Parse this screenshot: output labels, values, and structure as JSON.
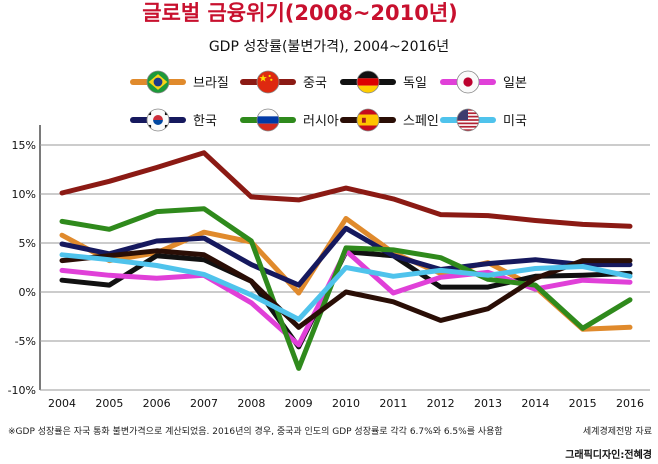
{
  "title": "글로벌 금융위기(2008~2010년)",
  "subtitle": "GDP 성장률(불변가격), 2004~2016년",
  "footnote": "※GDP 성장률은 자국 통화 불변가격으로 계산되었음. 2016년의 경우, 중국과 인도의 GDP 성장률로 각각 6.7%와 6.5%를 사용함",
  "source": "세계경제전망 자료",
  "credit": "그래픽디자인:전혜경",
  "chart_data": {
    "type": "line",
    "x": [
      "2004",
      "2005",
      "2006",
      "2007",
      "2008",
      "2009",
      "2010",
      "2011",
      "2012",
      "2013",
      "2014",
      "2015",
      "2016"
    ],
    "ylim": [
      -10,
      15
    ],
    "yticks": [
      "15%",
      "10%",
      "5%",
      "0%",
      "-5%",
      "-10%"
    ],
    "ytick_values": [
      15,
      10,
      5,
      0,
      -5,
      -10
    ],
    "grid": true,
    "legend_position": "top",
    "series": [
      {
        "name": "브라질",
        "color": "#e08a2c",
        "flag": "brazil-flag-icon",
        "values": [
          5.8,
          3.2,
          4.0,
          6.1,
          5.1,
          -0.1,
          7.5,
          4.0,
          1.9,
          3.0,
          0.5,
          -3.8,
          -3.6
        ]
      },
      {
        "name": "중국",
        "color": "#8b1a14",
        "flag": "china-flag-icon",
        "values": [
          10.1,
          11.3,
          12.7,
          14.2,
          9.7,
          9.4,
          10.6,
          9.5,
          7.9,
          7.8,
          7.3,
          6.9,
          6.7
        ]
      },
      {
        "name": "독일",
        "color": "#111111",
        "flag": "germany-flag-icon",
        "values": [
          1.2,
          0.7,
          3.7,
          3.3,
          1.1,
          -5.6,
          4.1,
          3.7,
          0.5,
          0.5,
          1.6,
          1.7,
          1.9
        ]
      },
      {
        "name": "일본",
        "color": "#e040d8",
        "flag": "japan-flag-icon",
        "values": [
          2.2,
          1.7,
          1.4,
          1.7,
          -1.1,
          -5.4,
          4.2,
          -0.1,
          1.5,
          2.0,
          0.3,
          1.2,
          1.0
        ]
      },
      {
        "name": "한국",
        "color": "#16195e",
        "flag": "korea-flag-icon",
        "values": [
          4.9,
          3.9,
          5.2,
          5.5,
          2.8,
          0.7,
          6.5,
          3.7,
          2.3,
          2.9,
          3.3,
          2.8,
          2.8
        ]
      },
      {
        "name": "러시아",
        "color": "#2f8a1c",
        "flag": "russia-flag-icon",
        "values": [
          7.2,
          6.4,
          8.2,
          8.5,
          5.2,
          -7.8,
          4.5,
          4.3,
          3.5,
          1.3,
          0.7,
          -3.7,
          -0.8
        ]
      },
      {
        "name": "스페인",
        "color": "#2a0e06",
        "flag": "spain-flag-icon",
        "values": [
          3.2,
          3.7,
          4.2,
          3.8,
          1.1,
          -3.6,
          0.0,
          -1.0,
          -2.9,
          -1.7,
          1.4,
          3.2,
          3.2
        ]
      },
      {
        "name": "미국",
        "color": "#4fc3ec",
        "flag": "usa-flag-icon",
        "values": [
          3.8,
          3.3,
          2.7,
          1.8,
          -0.3,
          -2.8,
          2.5,
          1.6,
          2.2,
          1.7,
          2.4,
          2.6,
          1.6
        ]
      }
    ]
  }
}
